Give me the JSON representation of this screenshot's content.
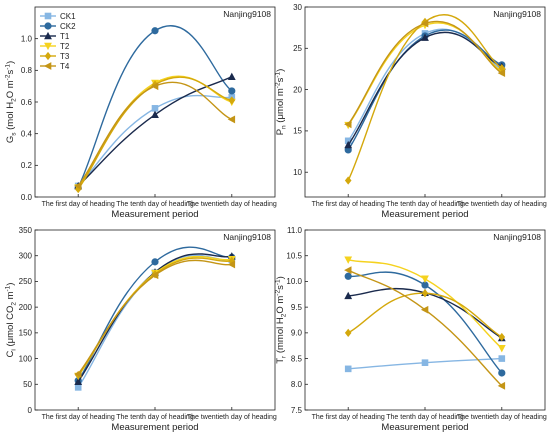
{
  "series_styles": [
    {
      "name": "CK1",
      "color": "#86b6e3",
      "marker": "square"
    },
    {
      "name": "CK2",
      "color": "#2e6a9e",
      "marker": "circle"
    },
    {
      "name": "T1",
      "color": "#1a2a4d",
      "marker": "triangle-up"
    },
    {
      "name": "T2",
      "color": "#f5d21e",
      "marker": "triangle-down"
    },
    {
      "name": "T3",
      "color": "#d4a80c",
      "marker": "diamond"
    },
    {
      "name": "T4",
      "color": "#c49516",
      "marker": "triangle-left"
    }
  ],
  "chart_data": [
    {
      "type": "line",
      "panel_label": "Nanjing9108",
      "xlabel": "Measurement period",
      "ylabel_main": "G",
      "ylabel_sub": "s",
      "ylabel_unit": "(mol H",
      "ylabel_unit_sub": "2",
      "ylabel_unit_rest": "O m",
      "ylabel_unit_sup1": "-2",
      "ylabel_unit_mid": "s",
      "ylabel_unit_sup2": "-1",
      "ylabel_unit_end": ")",
      "categories": [
        "The first day of heading",
        "The tenth day of heading",
        "The twentieth day of heading"
      ],
      "ylim": [
        0.0,
        1.2
      ],
      "yticks": [
        0.0,
        0.2,
        0.4,
        0.6,
        0.8,
        1.0
      ],
      "legend": "top-left",
      "series": [
        {
          "name": "CK1",
          "values": [
            0.07,
            0.56,
            0.63
          ]
        },
        {
          "name": "CK2",
          "values": [
            0.06,
            1.05,
            0.67
          ]
        },
        {
          "name": "T1",
          "values": [
            0.07,
            0.52,
            0.76
          ]
        },
        {
          "name": "T2",
          "values": [
            0.06,
            0.72,
            0.6
          ]
        },
        {
          "name": "T3",
          "values": [
            0.05,
            0.71,
            0.61
          ]
        },
        {
          "name": "T4",
          "values": [
            0.07,
            0.7,
            0.49
          ]
        }
      ]
    },
    {
      "type": "line",
      "panel_label": "Nanjing9108",
      "xlabel": "Measurement period",
      "ylabel_main": "P",
      "ylabel_sub": "n",
      "ylabel_unit": "(μmol m",
      "ylabel_unit_sub": "",
      "ylabel_unit_rest": "",
      "ylabel_unit_sup1": "-2",
      "ylabel_unit_mid": "s",
      "ylabel_unit_sup2": "-1",
      "ylabel_unit_end": ")",
      "categories": [
        "The first day of heading",
        "The tenth day of heading",
        "The twentieth day of heading"
      ],
      "ylim": [
        7,
        30
      ],
      "yticks": [
        10,
        15,
        20,
        25,
        30
      ],
      "legend": "",
      "series": [
        {
          "name": "CK1",
          "values": [
            13.8,
            26.8,
            22.5
          ]
        },
        {
          "name": "CK2",
          "values": [
            12.7,
            26.5,
            23.0
          ]
        },
        {
          "name": "T1",
          "values": [
            13.3,
            26.3,
            22.8
          ]
        },
        {
          "name": "T2",
          "values": [
            15.7,
            27.8,
            22.2
          ]
        },
        {
          "name": "T3",
          "values": [
            9.0,
            28.2,
            22.6
          ]
        },
        {
          "name": "T4",
          "values": [
            15.8,
            28.0,
            22.0
          ]
        }
      ]
    },
    {
      "type": "line",
      "panel_label": "Nanjing9108",
      "xlabel": "Measurement period",
      "ylabel_main": "C",
      "ylabel_sub": "i",
      "ylabel_unit": "(μmol CO",
      "ylabel_unit_sub": "2",
      "ylabel_unit_rest": " m",
      "ylabel_unit_sup1": "-1",
      "ylabel_unit_mid": "",
      "ylabel_unit_sup2": "",
      "ylabel_unit_end": ")",
      "categories": [
        "The first day of heading",
        "The tenth day of heading",
        "The twentieth day of heading"
      ],
      "ylim": [
        0,
        350
      ],
      "yticks": [
        0,
        50,
        100,
        150,
        200,
        250,
        300,
        350
      ],
      "legend": "",
      "series": [
        {
          "name": "CK1",
          "values": [
            44,
            267,
            292
          ]
        },
        {
          "name": "CK2",
          "values": [
            57,
            288,
            297
          ]
        },
        {
          "name": "T1",
          "values": [
            55,
            268,
            299
          ]
        },
        {
          "name": "T2",
          "values": [
            66,
            266,
            293
          ]
        },
        {
          "name": "T3",
          "values": [
            68,
            264,
            290
          ]
        },
        {
          "name": "T4",
          "values": [
            70,
            262,
            283
          ]
        }
      ]
    },
    {
      "type": "line",
      "panel_label": "Nanjing9108",
      "xlabel": "Measurement period",
      "ylabel_main": "T",
      "ylabel_sub": "r",
      "ylabel_unit": "(mmol H",
      "ylabel_unit_sub": "2",
      "ylabel_unit_rest": "O m",
      "ylabel_unit_sup1": "-2",
      "ylabel_unit_mid": "s",
      "ylabel_unit_sup2": "-1",
      "ylabel_unit_end": ")",
      "categories": [
        "The first day of heading",
        "The tenth day of heading",
        "The twentieth day of heading"
      ],
      "ylim": [
        7.5,
        11.0
      ],
      "yticks": [
        7.5,
        8.0,
        8.5,
        9.0,
        9.5,
        10.0,
        10.5,
        11.0
      ],
      "legend": "",
      "series": [
        {
          "name": "CK1",
          "values": [
            8.3,
            8.42,
            8.5
          ]
        },
        {
          "name": "CK2",
          "values": [
            10.1,
            9.93,
            8.22
          ]
        },
        {
          "name": "T1",
          "values": [
            9.72,
            9.78,
            8.9
          ]
        },
        {
          "name": "T2",
          "values": [
            10.42,
            10.05,
            8.7
          ]
        },
        {
          "name": "T3",
          "values": [
            9.0,
            9.77,
            8.92
          ]
        },
        {
          "name": "T4",
          "values": [
            10.22,
            9.45,
            7.97
          ]
        }
      ]
    }
  ]
}
